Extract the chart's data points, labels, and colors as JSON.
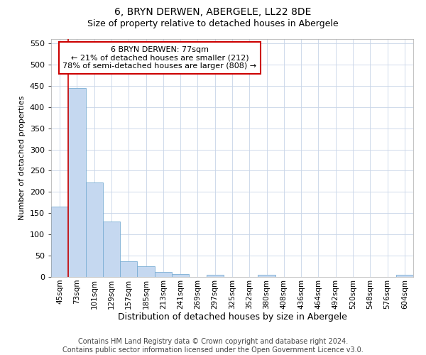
{
  "title": "6, BRYN DERWEN, ABERGELE, LL22 8DE",
  "subtitle": "Size of property relative to detached houses in Abergele",
  "xlabel": "Distribution of detached houses by size in Abergele",
  "ylabel": "Number of detached properties",
  "categories": [
    "45sqm",
    "73sqm",
    "101sqm",
    "129sqm",
    "157sqm",
    "185sqm",
    "213sqm",
    "241sqm",
    "269sqm",
    "297sqm",
    "325sqm",
    "352sqm",
    "380sqm",
    "408sqm",
    "436sqm",
    "464sqm",
    "492sqm",
    "520sqm",
    "548sqm",
    "576sqm",
    "604sqm"
  ],
  "values": [
    165,
    445,
    222,
    130,
    37,
    25,
    11,
    6,
    0,
    5,
    0,
    0,
    5,
    0,
    0,
    0,
    0,
    0,
    0,
    0,
    5
  ],
  "bar_color": "#c5d8f0",
  "bar_edge_color": "#7aadd4",
  "vline_color": "#cc0000",
  "vline_x_index": 1,
  "annotation_text_line1": "6 BRYN DERWEN: 77sqm",
  "annotation_text_line2": "← 21% of detached houses are smaller (212)",
  "annotation_text_line3": "78% of semi-detached houses are larger (808) →",
  "annotation_box_color": "#ffffff",
  "annotation_box_edge_color": "#cc0000",
  "ylim": [
    0,
    560
  ],
  "yticks": [
    0,
    50,
    100,
    150,
    200,
    250,
    300,
    350,
    400,
    450,
    500,
    550
  ],
  "grid_color": "#c8d4e8",
  "background_color": "#ffffff",
  "footer_line1": "Contains HM Land Registry data © Crown copyright and database right 2024.",
  "footer_line2": "Contains public sector information licensed under the Open Government Licence v3.0.",
  "title_fontsize": 10,
  "subtitle_fontsize": 9,
  "ylabel_fontsize": 8,
  "xlabel_fontsize": 9,
  "tick_fontsize": 8,
  "xtick_fontsize": 7.5,
  "footer_fontsize": 7,
  "annot_fontsize": 8
}
